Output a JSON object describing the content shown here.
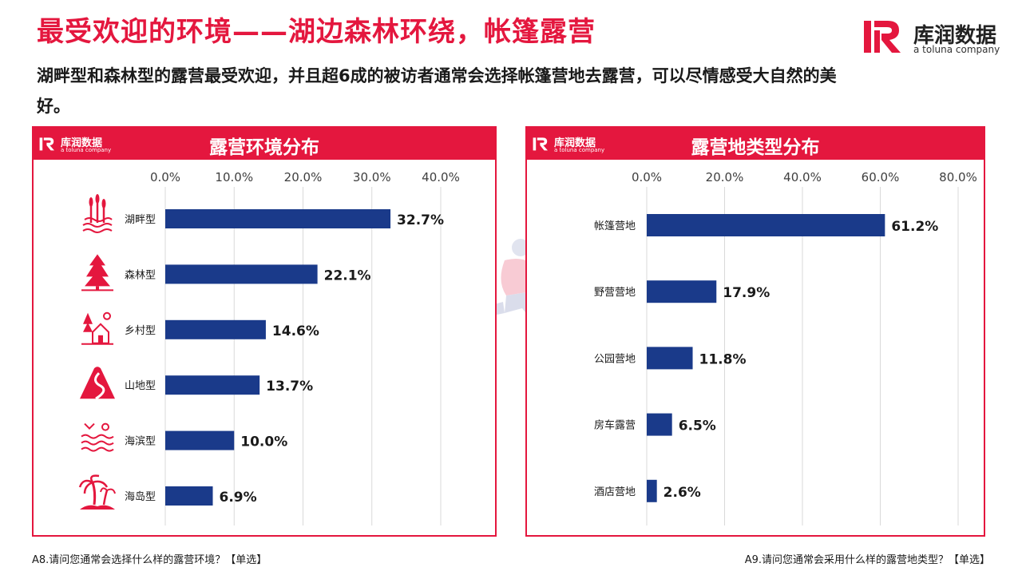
{
  "page": {
    "title": "最受欢迎的环境——湖边森林环绕，帐篷露营",
    "subtitle": "湖畔型和森林型的露营最受欢迎，并且超6成的被访者通常会选择帐篷营地去露营，可以尽情感受大自然的美好。"
  },
  "brand": {
    "name_cn": "库润数据",
    "name_en": "a toluna company",
    "accent": "#e4173e",
    "bar_color": "#1a3a8a"
  },
  "footnotes": {
    "left": "A8.请问您通常会选择什么样的露营环境？【单选】",
    "right": "A9.请问您通常会采用什么样的露营地类型？【单选】"
  },
  "chart_data": [
    {
      "type": "bar",
      "orientation": "horizontal",
      "title": "露营环境分布",
      "categories": [
        "湖畔型",
        "森林型",
        "乡村型",
        "山地型",
        "海滨型",
        "海岛型"
      ],
      "values": [
        32.7,
        22.1,
        14.6,
        13.7,
        10.0,
        6.9
      ],
      "value_labels": [
        "32.7%",
        "22.1%",
        "14.6%",
        "13.7%",
        "10.0%",
        "6.9%"
      ],
      "icons": [
        "lake-reeds-icon",
        "forest-trees-icon",
        "village-house-icon",
        "mountain-road-icon",
        "seaside-waves-icon",
        "island-palm-icon"
      ],
      "xlim": [
        0,
        40
      ],
      "ticks": [
        "0.0%",
        "10.0%",
        "20.0%",
        "30.0%",
        "40.0%"
      ],
      "tick_values": [
        0,
        10,
        20,
        30,
        40
      ],
      "grid": true
    },
    {
      "type": "bar",
      "orientation": "horizontal",
      "title": "露营地类型分布",
      "categories": [
        "帐篷营地",
        "野营营地",
        "公园营地",
        "房车露营",
        "酒店营地"
      ],
      "values": [
        61.2,
        17.9,
        11.8,
        6.5,
        2.6
      ],
      "value_labels": [
        "61.2%",
        "17.9%",
        "11.8%",
        "6.5%",
        "2.6%"
      ],
      "xlim": [
        0,
        80
      ],
      "ticks": [
        "0.0%",
        "20.0%",
        "40.0%",
        "60.0%",
        "80.0%"
      ],
      "tick_values": [
        0,
        20,
        40,
        60,
        80
      ],
      "grid": true
    }
  ]
}
